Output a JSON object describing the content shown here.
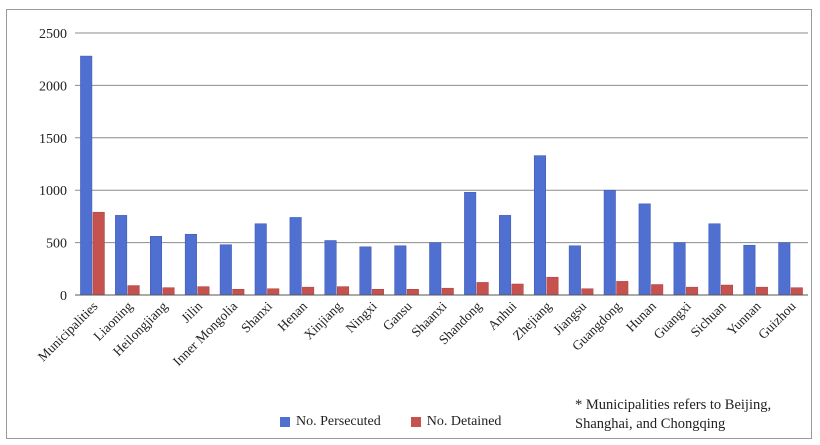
{
  "chart_data": {
    "type": "bar",
    "title": "",
    "xlabel": "",
    "ylabel": "",
    "ylim": [
      0,
      2500
    ],
    "yticks": [
      0,
      500,
      1000,
      1500,
      2000,
      2500
    ],
    "grid": true,
    "legend_position": "bottom",
    "categories": [
      "Municipalities",
      "Liaoning",
      "Heilongjiang",
      "Jilin",
      "Inner Mongolia",
      "Shanxi",
      "Henan",
      "Xinjiang",
      "Ningxi",
      "Gansu",
      "Shaanxi",
      "Shandong",
      "Anhui",
      "Zhejiang",
      "Jiangsu",
      "Guangdong",
      "Hunan",
      "Guangxi",
      "Sichuan",
      "Yunnan",
      "Guizhou"
    ],
    "series": [
      {
        "name": "No. Persecuted",
        "color": "#4f6fd1",
        "values": [
          2280,
          760,
          560,
          580,
          480,
          680,
          740,
          520,
          460,
          470,
          500,
          980,
          760,
          1330,
          470,
          1000,
          870,
          500,
          680,
          475,
          500
        ]
      },
      {
        "name": "No. Detained",
        "color": "#c6524f",
        "values": [
          790,
          90,
          70,
          80,
          55,
          60,
          75,
          80,
          55,
          55,
          65,
          120,
          105,
          170,
          60,
          130,
          100,
          75,
          95,
          75,
          70
        ]
      }
    ],
    "annotation": "* Municipalities refers to Beijing, Shanghai, and Chongqing"
  }
}
